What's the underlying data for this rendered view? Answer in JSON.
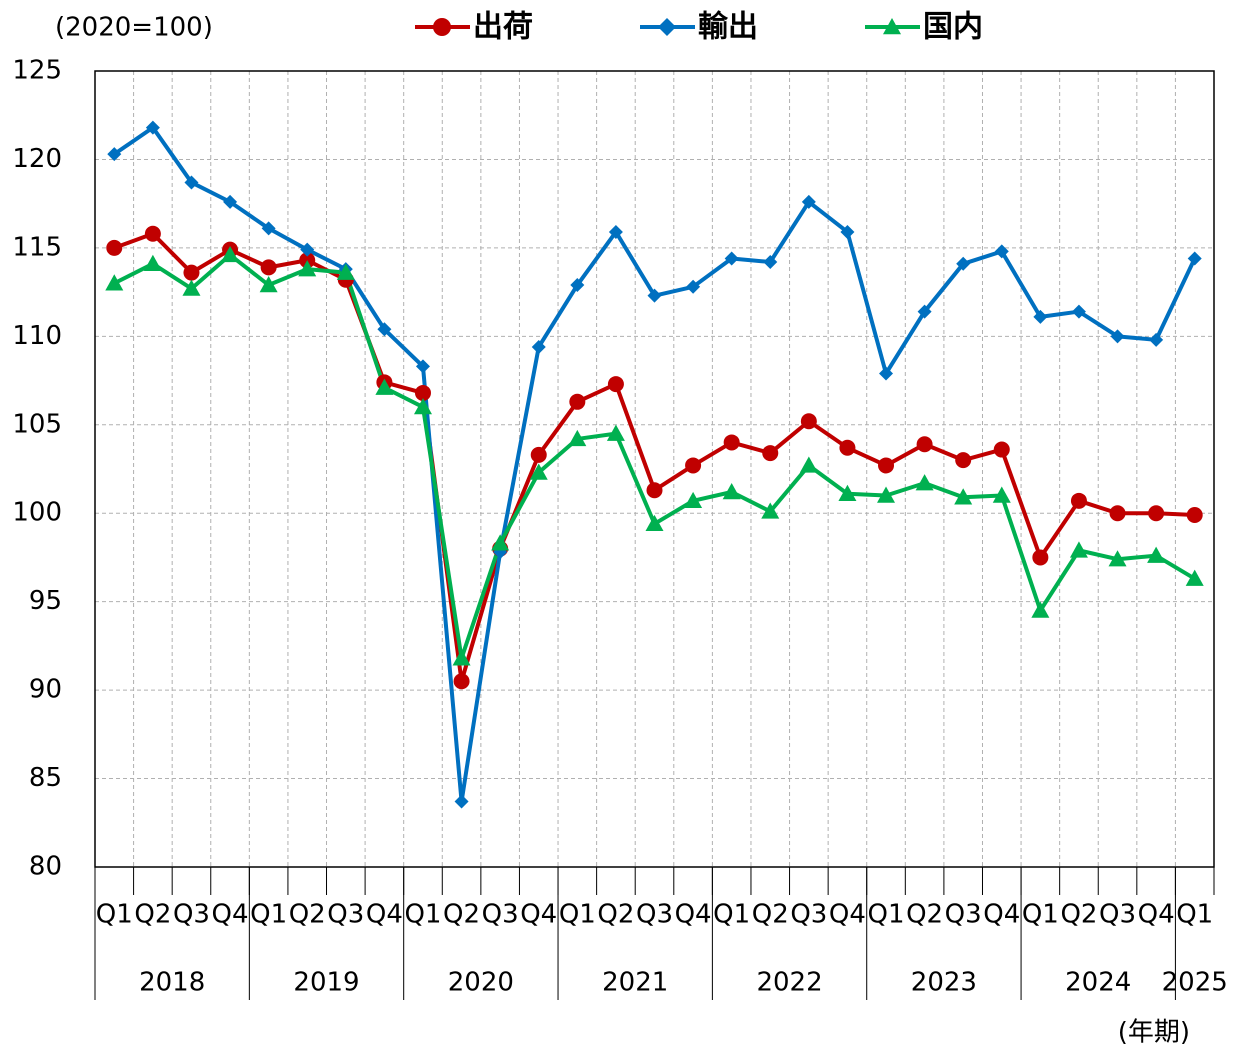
{
  "chart_data": {
    "type": "line",
    "unit_label": "(2020=100)",
    "x_label": "(年期)",
    "categories": [
      "Q1",
      "Q2",
      "Q3",
      "Q4",
      "Q1",
      "Q2",
      "Q3",
      "Q4",
      "Q1",
      "Q2",
      "Q3",
      "Q4",
      "Q1",
      "Q2",
      "Q3",
      "Q4",
      "Q1",
      "Q2",
      "Q3",
      "Q4",
      "Q1",
      "Q2",
      "Q3",
      "Q4",
      "Q1",
      "Q2",
      "Q3",
      "Q4",
      "Q1"
    ],
    "years": [
      "2018",
      "2019",
      "2020",
      "2021",
      "2022",
      "2023",
      "2024",
      "2025"
    ],
    "series": [
      {
        "name": "出荷",
        "color": "#c00000",
        "marker": "circle",
        "values": [
          115.0,
          115.8,
          113.6,
          114.9,
          113.9,
          114.3,
          113.2,
          107.4,
          106.8,
          90.5,
          98.0,
          103.3,
          106.3,
          107.3,
          101.3,
          102.7,
          104.0,
          103.4,
          105.2,
          103.7,
          102.7,
          103.9,
          103.0,
          103.6,
          97.5,
          100.7,
          100.0,
          100.0,
          99.9
        ]
      },
      {
        "name": "輸出",
        "color": "#0070c0",
        "marker": "diamond",
        "values": [
          120.3,
          121.8,
          118.7,
          117.6,
          116.1,
          114.9,
          113.8,
          110.4,
          108.3,
          83.7,
          97.8,
          109.4,
          112.9,
          115.9,
          112.3,
          112.8,
          114.4,
          114.2,
          117.6,
          115.9,
          107.9,
          111.4,
          114.1,
          114.8,
          111.1,
          111.4,
          110.0,
          109.8,
          114.4
        ]
      },
      {
        "name": "国内",
        "color": "#00b050",
        "marker": "triangle",
        "values": [
          113.0,
          114.1,
          112.7,
          114.6,
          112.9,
          113.8,
          113.6,
          107.1,
          106.0,
          91.8,
          98.3,
          102.3,
          104.2,
          104.5,
          99.4,
          100.7,
          101.2,
          100.1,
          102.7,
          101.1,
          101.0,
          101.7,
          100.9,
          101.0,
          94.5,
          97.9,
          97.4,
          97.6,
          96.3
        ]
      }
    ],
    "ylim": [
      80,
      125
    ],
    "yticks": [
      80,
      85,
      90,
      95,
      100,
      105,
      110,
      115,
      120,
      125
    ],
    "grid": true
  }
}
